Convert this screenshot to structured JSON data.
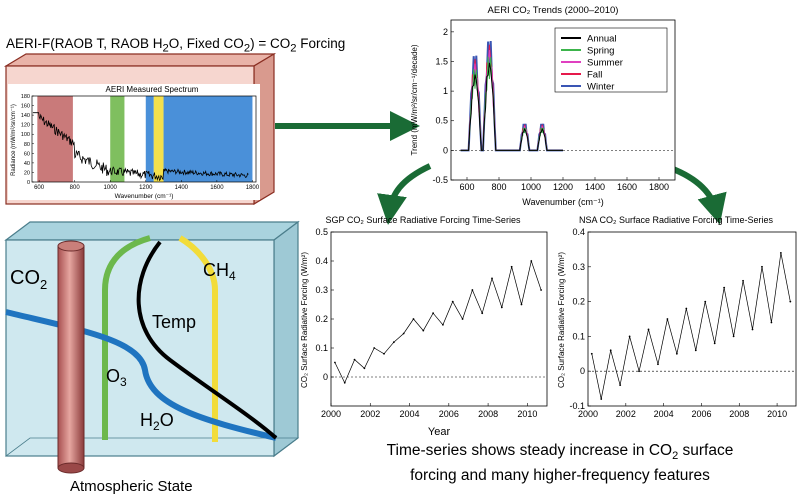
{
  "equation": {
    "prefix": "AERI-F(RAOB T, RAOB H",
    "sub1": "2",
    "mid": "O, Fixed CO",
    "sub2": "2",
    "suffix": ") = CO",
    "sub3": "2",
    "tail": " Forcing"
  },
  "spectrum_panel": {
    "title": "AERI Measured Spectrum",
    "ylabel": "Radiance (mW/m²/sr/cm⁻¹)",
    "xlabel": "Wavenumber (cm⁻¹)",
    "yticks": [
      "0",
      "20",
      "40",
      "60",
      "80",
      "100",
      "120",
      "140",
      "160",
      "180"
    ],
    "xticks": [
      "600",
      "800",
      "1000",
      "1200",
      "1400",
      "1600",
      "1800"
    ],
    "bands": [
      {
        "from": 590,
        "to": 790,
        "color": "#c97a7a"
      },
      {
        "from": 1000,
        "to": 1080,
        "color": "#7fbf5f"
      },
      {
        "from": 1200,
        "to": 1245,
        "color": "#4a90d9"
      },
      {
        "from": 1245,
        "to": 1300,
        "color": "#f4e04d"
      },
      {
        "from": 1300,
        "to": 1800,
        "color": "#4a90d9"
      }
    ]
  },
  "trends_chart": {
    "title": "AERI CO₂ Trends (2000–2010)",
    "ylabel": "Trend (mW/m²/sr/cm⁻¹/decade)",
    "xlabel": "Wavenumber (cm⁻¹)",
    "yticks": [
      "-0.5",
      "0",
      "0.5",
      "1",
      "1.5",
      "2"
    ],
    "xticks": [
      "600",
      "800",
      "1000",
      "1200",
      "1400",
      "1600",
      "1800"
    ],
    "legend": [
      {
        "label": "Annual",
        "color": "#000000"
      },
      {
        "label": "Spring",
        "color": "#3cb44b"
      },
      {
        "label": "Summer",
        "color": "#e040c0"
      },
      {
        "label": "Fall",
        "color": "#e6194b"
      },
      {
        "label": "Winter",
        "color": "#3a55b4"
      }
    ]
  },
  "chart_data": [
    {
      "type": "line",
      "title": "SGP CO₂ Surface Radiative Forcing Time-Series",
      "xlabel": "Year",
      "ylabel": "CO₂ Surface Radiative Forcing (W/m²)",
      "xlim": [
        2000,
        2011
      ],
      "ylim": [
        -0.1,
        0.5
      ],
      "xticks": [
        "2000",
        "2002",
        "2004",
        "2006",
        "2008",
        "2010"
      ],
      "yticks": [
        "0",
        "0.1",
        "0.2",
        "0.3",
        "0.4",
        "0.5"
      ],
      "x": [
        2000.2,
        2000.7,
        2001.2,
        2001.7,
        2002.2,
        2002.7,
        2003.2,
        2003.7,
        2004.2,
        2004.7,
        2005.2,
        2005.7,
        2006.2,
        2006.7,
        2007.2,
        2007.7,
        2008.2,
        2008.7,
        2009.2,
        2009.7,
        2010.2,
        2010.7
      ],
      "y": [
        0.05,
        -0.02,
        0.06,
        0.03,
        0.1,
        0.08,
        0.12,
        0.15,
        0.2,
        0.16,
        0.22,
        0.18,
        0.26,
        0.2,
        0.3,
        0.22,
        0.34,
        0.24,
        0.38,
        0.25,
        0.4,
        0.3
      ]
    },
    {
      "type": "line",
      "title": "NSA CO₂ Surface Radiative Forcing Time-Series",
      "xlabel": "",
      "ylabel": "CO₂ Surface Radiative Forcing (W/m²)",
      "xlim": [
        2000,
        2011
      ],
      "ylim": [
        -0.1,
        0.4
      ],
      "xticks": [
        "2000",
        "2002",
        "2004",
        "2006",
        "2008",
        "2010"
      ],
      "yticks": [
        "-0.1",
        "0",
        "0.1",
        "0.2",
        "0.3",
        "0.4"
      ],
      "x": [
        2000.2,
        2000.7,
        2001.2,
        2001.7,
        2002.2,
        2002.7,
        2003.2,
        2003.7,
        2004.2,
        2004.7,
        2005.2,
        2005.7,
        2006.2,
        2006.7,
        2007.2,
        2007.7,
        2008.2,
        2008.7,
        2009.2,
        2009.7,
        2010.2,
        2010.7
      ],
      "y": [
        0.05,
        -0.08,
        0.06,
        -0.04,
        0.1,
        0.0,
        0.12,
        0.02,
        0.15,
        0.05,
        0.18,
        0.06,
        0.2,
        0.08,
        0.24,
        0.1,
        0.26,
        0.12,
        0.3,
        0.14,
        0.34,
        0.2
      ]
    }
  ],
  "atmosphere": {
    "caption": "Atmospheric State",
    "labels": {
      "co2": "CO",
      "co2_sub": "2",
      "ch4": "CH",
      "ch4_sub": "4",
      "temp": "Temp",
      "o3": "O",
      "o3_sub": "3",
      "h2o_a": "H",
      "h2o_sub": "2",
      "h2o_b": "O"
    }
  },
  "caption": {
    "line1_a": "Time-series shows steady increase in CO",
    "line1_sub": "2",
    "line1_b": " surface",
    "line2": "forcing and many higher-frequency features"
  },
  "colors": {
    "arrow_green": "#1a6b35",
    "box_fill": "#f6d6cf",
    "box_edge": "#8a2e22",
    "atmos_fill": "#cfe8ef"
  }
}
